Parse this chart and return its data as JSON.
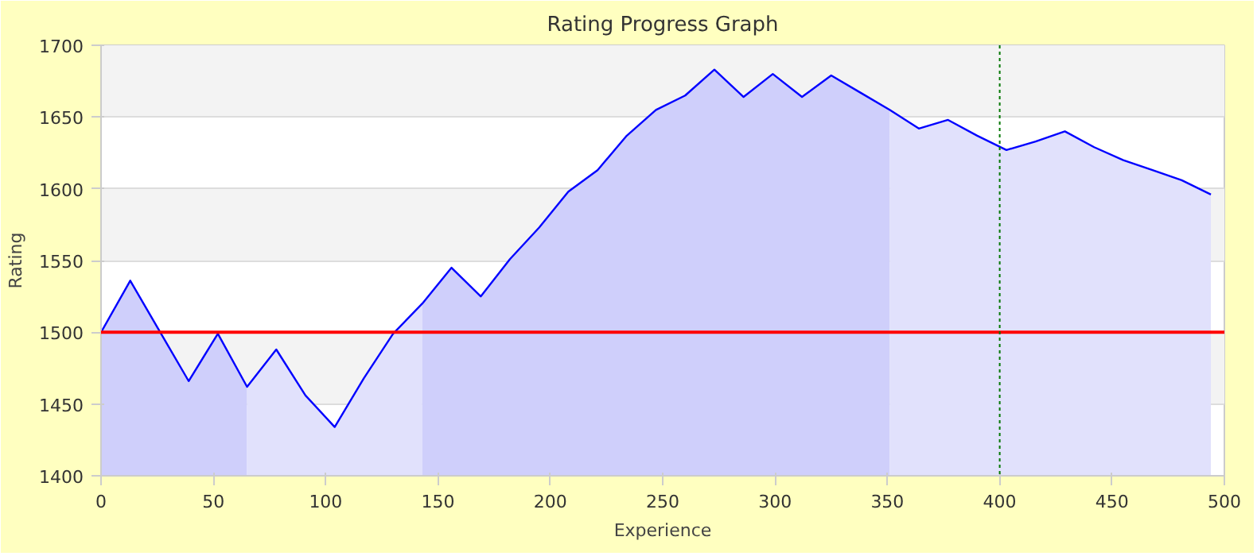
{
  "chart_data": {
    "type": "area",
    "title": "Rating Progress Graph",
    "xlabel": "Experience",
    "ylabel": "Rating",
    "xlim": [
      0,
      500
    ],
    "xticks": [
      0,
      50,
      100,
      150,
      200,
      250,
      300,
      350,
      400,
      450,
      500
    ],
    "ylim": [
      1400,
      1700
    ],
    "yticks": [
      1400,
      1450,
      1500,
      1550,
      1600,
      1650,
      1700
    ],
    "grid": "y",
    "marker": "none",
    "line_style": "solid",
    "series": [
      {
        "color": "#cfcffb",
        "x": [
          0,
          13,
          26,
          39,
          52,
          65
        ],
        "values": [
          1500,
          1536,
          1501,
          1466,
          1499,
          1462
        ]
      },
      {
        "color": "#e1e1fc",
        "x": [
          65,
          78,
          91,
          104,
          117,
          130,
          143
        ],
        "values": [
          1462,
          1488,
          1456,
          1434,
          1468,
          1499,
          1520
        ]
      },
      {
        "color": "#cfcffb",
        "x": [
          143,
          156,
          169,
          182,
          195,
          208,
          221,
          234,
          247,
          260,
          273,
          286,
          299,
          312,
          325,
          338,
          351
        ],
        "values": [
          1520,
          1545,
          1525,
          1551,
          1573,
          1598,
          1613,
          1637,
          1655,
          1665,
          1683,
          1664,
          1680,
          1664,
          1679,
          1667,
          1655
        ]
      },
      {
        "color": "#e1e1fc",
        "x": [
          351,
          364,
          377,
          390,
          403,
          416,
          429,
          442,
          455,
          468,
          481,
          494
        ],
        "values": [
          1655,
          1642,
          1648,
          1637,
          1627,
          1633,
          1640,
          1629,
          1620,
          1613,
          1606,
          1596
        ]
      },
      {
        "type": "line",
        "color": "#0000ff",
        "x": [
          0,
          13,
          26,
          39,
          52,
          65,
          78,
          91,
          104,
          117,
          130,
          143,
          156,
          169,
          182,
          195,
          208,
          221,
          234,
          247,
          260,
          273,
          286,
          299,
          312,
          325,
          338,
          351,
          364,
          377,
          390,
          403,
          416,
          429,
          442,
          455,
          468,
          481,
          494
        ],
        "values": [
          1500,
          1536,
          1501,
          1466,
          1499,
          1462,
          1488,
          1456,
          1434,
          1468,
          1499,
          1520,
          1545,
          1525,
          1551,
          1573,
          1598,
          1613,
          1637,
          1655,
          1665,
          1683,
          1664,
          1680,
          1664,
          1679,
          1667,
          1655,
          1642,
          1648,
          1637,
          1627,
          1633,
          1640,
          1629,
          1620,
          1613,
          1606,
          1596
        ]
      }
    ],
    "ref_lines": [
      {
        "axis": "y",
        "value": 1500,
        "color": "#ff0000",
        "line_style": "solid"
      },
      {
        "axis": "x",
        "value": 400,
        "color": "#007700",
        "line_style": "dotted"
      }
    ]
  }
}
